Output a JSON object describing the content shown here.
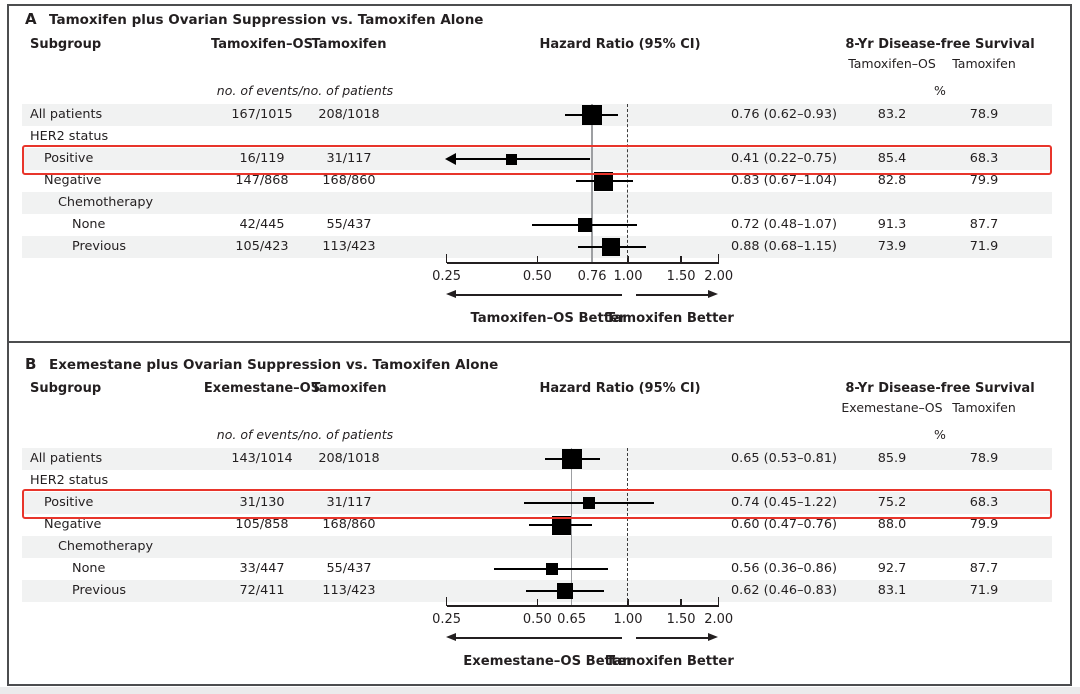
{
  "colors": {
    "text": "#231f20",
    "stripe": "#f1f2f2",
    "highlight_red": "#e8352b",
    "border": "#4c4d4f",
    "marker_black": "#000000",
    "ref_line_gray": "#9d9fa2"
  },
  "chart_data": [
    {
      "type": "forest",
      "panel_label": "A",
      "title": "Tamoxifen plus Ovarian Suppression vs. Tamoxifen Alone",
      "col_headers": {
        "subgroup": "Subgroup",
        "arm1": "Tamoxifen–OS",
        "arm2": "Tamoxifen",
        "hazard": "Hazard Ratio (95% CI)",
        "survival": "8-Yr Disease-free Survival",
        "survival_arm1": "Tamoxifen–OS",
        "survival_arm2": "Tamoxifen",
        "events_note": "no. of events/no. of patients",
        "percent": "%"
      },
      "axis": {
        "scale": "log",
        "min": 0.25,
        "max": 2.0,
        "null_value": 1.0,
        "ref_value": 0.76,
        "tick_values": [
          0.25,
          0.5,
          0.76,
          1.0,
          1.5,
          2.0
        ],
        "tick_labels": [
          "0.25",
          "0.50",
          "0.76",
          "1.00",
          "1.50",
          "2.00"
        ]
      },
      "direction_labels": {
        "left": "Tamoxifen–OS Better",
        "right": "Tamoxifen Better"
      },
      "rows": [
        {
          "label": "All patients",
          "indent": 0,
          "arm1": "167/1015",
          "arm2": "208/1018",
          "hr": 0.76,
          "lo": 0.62,
          "hi": 0.93,
          "hr_text": "0.76 (0.62–0.93)",
          "surv1": "83.2",
          "surv2": "78.9",
          "marker": 20,
          "stripe": true
        },
        {
          "label": "HER2 status",
          "indent": 0,
          "header": true,
          "stripe": false
        },
        {
          "label": "Positive",
          "indent": 1,
          "arm1": "16/119",
          "arm2": "31/117",
          "hr": 0.41,
          "lo": 0.22,
          "hi": 0.75,
          "hr_text": "0.41 (0.22–0.75)",
          "surv1": "85.4",
          "surv2": "68.3",
          "marker": 11,
          "stripe": true,
          "highlight": true
        },
        {
          "label": "Negative",
          "indent": 1,
          "arm1": "147/868",
          "arm2": "168/860",
          "hr": 0.83,
          "lo": 0.67,
          "hi": 1.04,
          "hr_text": "0.83 (0.67–1.04)",
          "surv1": "82.8",
          "surv2": "79.9",
          "marker": 19,
          "stripe": false
        },
        {
          "label": "Chemotherapy",
          "indent": 2,
          "header": true,
          "stripe": true
        },
        {
          "label": "None",
          "indent": 3,
          "arm1": "42/445",
          "arm2": "55/437",
          "hr": 0.72,
          "lo": 0.48,
          "hi": 1.07,
          "hr_text": "0.72 (0.48–1.07)",
          "surv1": "91.3",
          "surv2": "87.7",
          "marker": 14,
          "stripe": false
        },
        {
          "label": "Previous",
          "indent": 3,
          "arm1": "105/423",
          "arm2": "113/423",
          "hr": 0.88,
          "lo": 0.68,
          "hi": 1.15,
          "hr_text": "0.88 (0.68–1.15)",
          "surv1": "73.9",
          "surv2": "71.9",
          "marker": 18,
          "stripe": true
        }
      ]
    },
    {
      "type": "forest",
      "panel_label": "B",
      "title": "Exemestane plus Ovarian Suppression vs. Tamoxifen Alone",
      "col_headers": {
        "subgroup": "Subgroup",
        "arm1": "Exemestane–OS",
        "arm2": "Tamoxifen",
        "hazard": "Hazard Ratio (95% CI)",
        "survival": "8-Yr Disease-free Survival",
        "survival_arm1": "Exemestane–OS",
        "survival_arm2": "Tamoxifen",
        "events_note": "no. of events/no. of patients",
        "percent": "%"
      },
      "axis": {
        "scale": "log",
        "min": 0.25,
        "max": 2.0,
        "null_value": 1.0,
        "ref_value": 0.65,
        "tick_values": [
          0.25,
          0.5,
          0.65,
          1.0,
          1.5,
          2.0
        ],
        "tick_labels": [
          "0.25",
          "0.50",
          "0.65",
          "1.00",
          "1.50",
          "2.00"
        ]
      },
      "direction_labels": {
        "left": "Exemestane–OS Better",
        "right": "Tamoxifen Better"
      },
      "rows": [
        {
          "label": "All patients",
          "indent": 0,
          "arm1": "143/1014",
          "arm2": "208/1018",
          "hr": 0.65,
          "lo": 0.53,
          "hi": 0.81,
          "hr_text": "0.65 (0.53–0.81)",
          "surv1": "85.9",
          "surv2": "78.9",
          "marker": 20,
          "stripe": true
        },
        {
          "label": "HER2 status",
          "indent": 0,
          "header": true,
          "stripe": false
        },
        {
          "label": "Positive",
          "indent": 1,
          "arm1": "31/130",
          "arm2": "31/117",
          "hr": 0.74,
          "lo": 0.45,
          "hi": 1.22,
          "hr_text": "0.74 (0.45–1.22)",
          "surv1": "75.2",
          "surv2": "68.3",
          "marker": 12,
          "stripe": true,
          "highlight": true
        },
        {
          "label": "Negative",
          "indent": 1,
          "arm1": "105/858",
          "arm2": "168/860",
          "hr": 0.6,
          "lo": 0.47,
          "hi": 0.76,
          "hr_text": "0.60 (0.47–0.76)",
          "surv1": "88.0",
          "surv2": "79.9",
          "marker": 19,
          "stripe": false
        },
        {
          "label": "Chemotherapy",
          "indent": 2,
          "header": true,
          "stripe": true
        },
        {
          "label": "None",
          "indent": 3,
          "arm1": "33/447",
          "arm2": "55/437",
          "hr": 0.56,
          "lo": 0.36,
          "hi": 0.86,
          "hr_text": "0.56 (0.36–0.86)",
          "surv1": "92.7",
          "surv2": "87.7",
          "marker": 12,
          "stripe": false
        },
        {
          "label": "Previous",
          "indent": 3,
          "arm1": "72/411",
          "arm2": "113/423",
          "hr": 0.62,
          "lo": 0.46,
          "hi": 0.83,
          "hr_text": "0.62 (0.46–0.83)",
          "surv1": "83.1",
          "surv2": "71.9",
          "marker": 16,
          "stripe": true
        }
      ]
    }
  ]
}
